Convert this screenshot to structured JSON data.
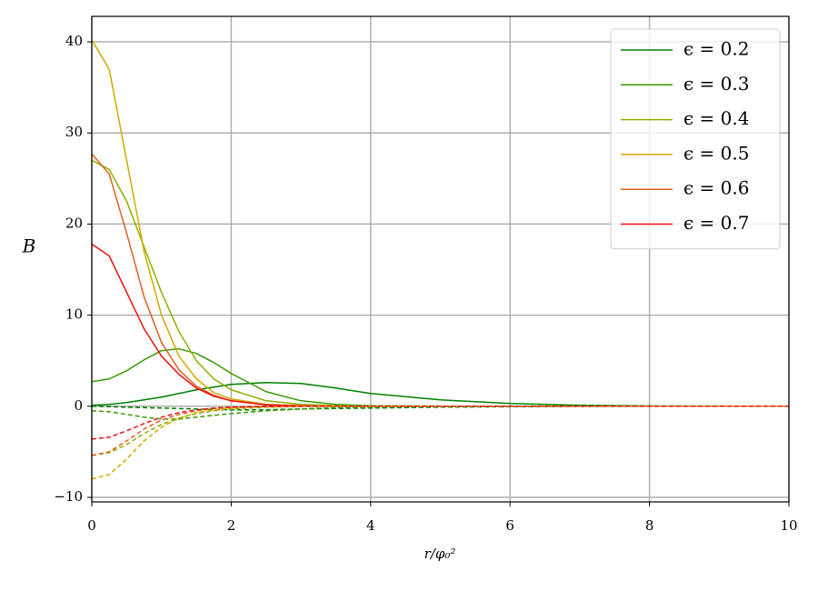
{
  "chart_data": {
    "type": "line",
    "xlabel": "r/φ₀²",
    "ylabel": "B",
    "x": [
      0,
      0.25,
      0.5,
      0.75,
      1,
      1.25,
      1.5,
      1.75,
      2,
      2.5,
      3,
      3.5,
      4,
      5,
      6,
      7,
      8,
      10
    ],
    "xlim": [
      0,
      10
    ],
    "xticks": [
      0,
      2,
      4,
      6,
      8,
      10
    ],
    "ylim": [
      -10.5,
      42.8
    ],
    "yticks": [
      {
        "value": -10,
        "label": "−10"
      },
      0,
      10,
      20,
      30,
      40
    ],
    "grid": true,
    "legend": "upper right",
    "series": [
      {
        "name": "ϵ = 0.2",
        "color": "#008000",
        "dashed": false,
        "values": [
          0.1,
          0.2,
          0.4,
          0.7,
          1.0,
          1.4,
          1.8,
          2.1,
          2.4,
          2.6,
          2.5,
          2.0,
          1.4,
          0.7,
          0.3,
          0.1,
          0.03,
          0
        ]
      },
      {
        "name": "ϵ = 0.3",
        "color": "#3a9a00",
        "dashed": false,
        "values": [
          2.7,
          3.0,
          3.9,
          5.1,
          6.1,
          6.3,
          5.8,
          4.8,
          3.6,
          1.6,
          0.6,
          0.2,
          0.05,
          0,
          0,
          0,
          0,
          0
        ]
      },
      {
        "name": "ϵ = 0.4",
        "color": "#8cb000",
        "dashed": false,
        "values": [
          27,
          26,
          22.5,
          17.5,
          12.5,
          8.2,
          5,
          3,
          1.8,
          0.6,
          0.2,
          0.05,
          0,
          0,
          0,
          0,
          0,
          0
        ]
      },
      {
        "name": "ϵ = 0.5",
        "color": "#d4a800",
        "dashed": false,
        "values": [
          40.2,
          37,
          27,
          17,
          10,
          5.5,
          3,
          1.5,
          0.8,
          0.2,
          0.05,
          0,
          0,
          0,
          0,
          0,
          0,
          0
        ]
      },
      {
        "name": "ϵ = 0.6",
        "color": "#e06020",
        "dashed": false,
        "values": [
          27.7,
          25.5,
          19,
          12,
          7,
          4,
          2.2,
          1.2,
          0.6,
          0.15,
          0.04,
          0,
          0,
          0,
          0,
          0,
          0,
          0
        ]
      },
      {
        "name": "ϵ = 0.7",
        "color": "#ee1010",
        "dashed": false,
        "values": [
          17.8,
          16.5,
          12.5,
          8.5,
          5.5,
          3.5,
          2,
          1.1,
          0.6,
          0.15,
          0.04,
          0,
          0,
          0,
          0,
          0,
          0,
          0
        ]
      },
      {
        "color": "#008000",
        "dashed": true,
        "values": [
          0,
          -0.05,
          -0.1,
          -0.15,
          -0.2,
          -0.25,
          -0.3,
          -0.35,
          -0.4,
          -0.38,
          -0.3,
          -0.25,
          -0.2,
          -0.1,
          -0.05,
          -0.02,
          0,
          0
        ]
      },
      {
        "color": "#3a9a00",
        "dashed": true,
        "values": [
          -0.5,
          -0.6,
          -0.9,
          -1.2,
          -1.4,
          -1.4,
          -1.2,
          -1.0,
          -0.8,
          -0.5,
          -0.3,
          -0.15,
          -0.08,
          -0.02,
          0,
          0,
          0,
          0
        ]
      },
      {
        "color": "#8cb000",
        "dashed": true,
        "values": [
          -5.4,
          -5.1,
          -4.2,
          -3,
          -2,
          -1.3,
          -0.8,
          -0.5,
          -0.3,
          -0.1,
          -0.03,
          0,
          0,
          0,
          0,
          0,
          0,
          0
        ]
      },
      {
        "color": "#d4a800",
        "dashed": true,
        "values": [
          -8,
          -7.5,
          -5.8,
          -3.8,
          -2.3,
          -1.3,
          -0.7,
          -0.4,
          -0.2,
          -0.05,
          0,
          0,
          0,
          0,
          0,
          0,
          0,
          0
        ]
      },
      {
        "color": "#e06020",
        "dashed": true,
        "values": [
          -5.4,
          -5,
          -3.8,
          -2.5,
          -1.5,
          -0.9,
          -0.5,
          -0.25,
          -0.12,
          -0.03,
          0,
          0,
          0,
          0,
          0,
          0,
          0,
          0
        ]
      },
      {
        "color": "#ee1010",
        "dashed": true,
        "values": [
          -3.6,
          -3.4,
          -2.7,
          -1.9,
          -1.2,
          -0.7,
          -0.4,
          -0.2,
          -0.1,
          -0.02,
          0,
          0,
          0,
          0,
          0,
          0,
          0,
          0
        ]
      }
    ]
  }
}
